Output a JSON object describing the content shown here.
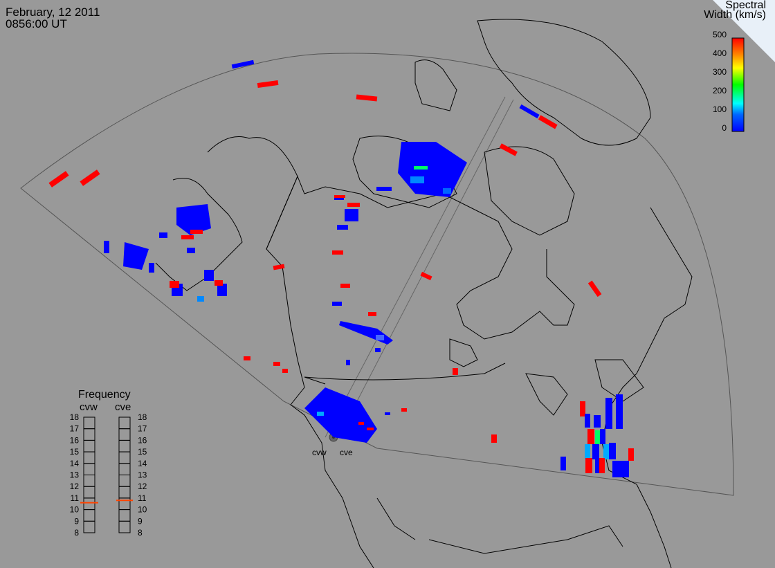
{
  "header": {
    "date": "February, 12 2011",
    "time": "0856:00 UT"
  },
  "legend": {
    "title_line1": "Spectral",
    "title_line2": "Width (km/s)",
    "ticks": [
      "500",
      "400",
      "300",
      "200",
      "100",
      "0"
    ],
    "gradient_colors": [
      "#ff0000",
      "#ff8800",
      "#ffff00",
      "#00ff00",
      "#00ffff",
      "#0000ff"
    ]
  },
  "frequency_panel": {
    "title": "Frequency",
    "radars": [
      "cvw",
      "cve"
    ],
    "scale": [
      "18",
      "17",
      "16",
      "15",
      "14",
      "13",
      "12",
      "11",
      "10",
      "9",
      "8"
    ],
    "cvw_mhz": 10.6,
    "cve_mhz": 10.8,
    "marker_color": "#ff4400"
  },
  "site_labels": {
    "west": "cvw",
    "east": "cve"
  }
}
